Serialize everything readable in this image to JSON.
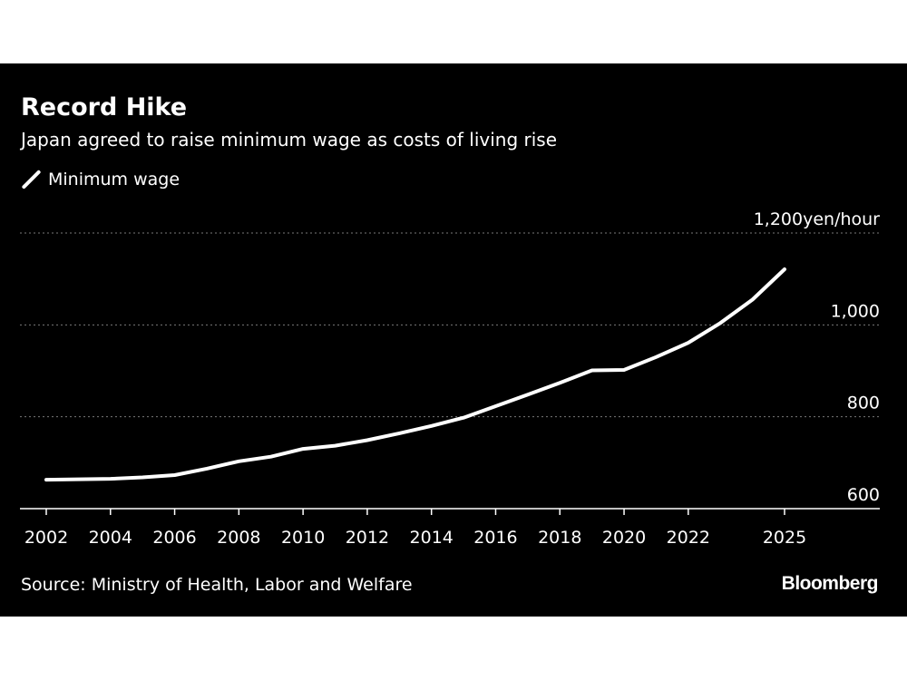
{
  "chart_data": {
    "type": "line",
    "title": "Record Hike",
    "subtitle": "Japan agreed to raise minimum wage as costs of living rise",
    "unit_label": "yen/hour",
    "legend_position": "top-left",
    "grid": true,
    "series": [
      {
        "name": "Minimum wage",
        "color": "#ffffff",
        "x": [
          2002,
          2003,
          2004,
          2005,
          2006,
          2007,
          2008,
          2009,
          2010,
          2011,
          2012,
          2013,
          2014,
          2015,
          2016,
          2017,
          2018,
          2019,
          2020,
          2021,
          2022,
          2023,
          2024,
          2025
        ],
        "values": [
          663,
          664,
          665,
          668,
          673,
          687,
          703,
          713,
          730,
          737,
          749,
          764,
          780,
          798,
          823,
          848,
          874,
          901,
          902,
          930,
          961,
          1004,
          1055,
          1121
        ]
      }
    ],
    "xlim": [
      2002,
      2025
    ],
    "ylim": [
      600,
      1200
    ],
    "y_ticks": [
      {
        "value": 600,
        "label": "600"
      },
      {
        "value": 800,
        "label": "800"
      },
      {
        "value": 1000,
        "label": "1,000"
      },
      {
        "value": 1200,
        "label": "1,200"
      }
    ],
    "x_ticks": [
      {
        "value": 2002,
        "label": "2002"
      },
      {
        "value": 2004,
        "label": "2004"
      },
      {
        "value": 2006,
        "label": "2006"
      },
      {
        "value": 2008,
        "label": "2008"
      },
      {
        "value": 2010,
        "label": "2010"
      },
      {
        "value": 2012,
        "label": "2012"
      },
      {
        "value": 2014,
        "label": "2014"
      },
      {
        "value": 2016,
        "label": "2016"
      },
      {
        "value": 2018,
        "label": "2018"
      },
      {
        "value": 2020,
        "label": "2020"
      },
      {
        "value": 2022,
        "label": "2022"
      },
      {
        "value": 2025,
        "label": "2025"
      }
    ],
    "source": "Source: Ministry of Health, Labor and Welfare",
    "brand": "Bloomberg"
  }
}
